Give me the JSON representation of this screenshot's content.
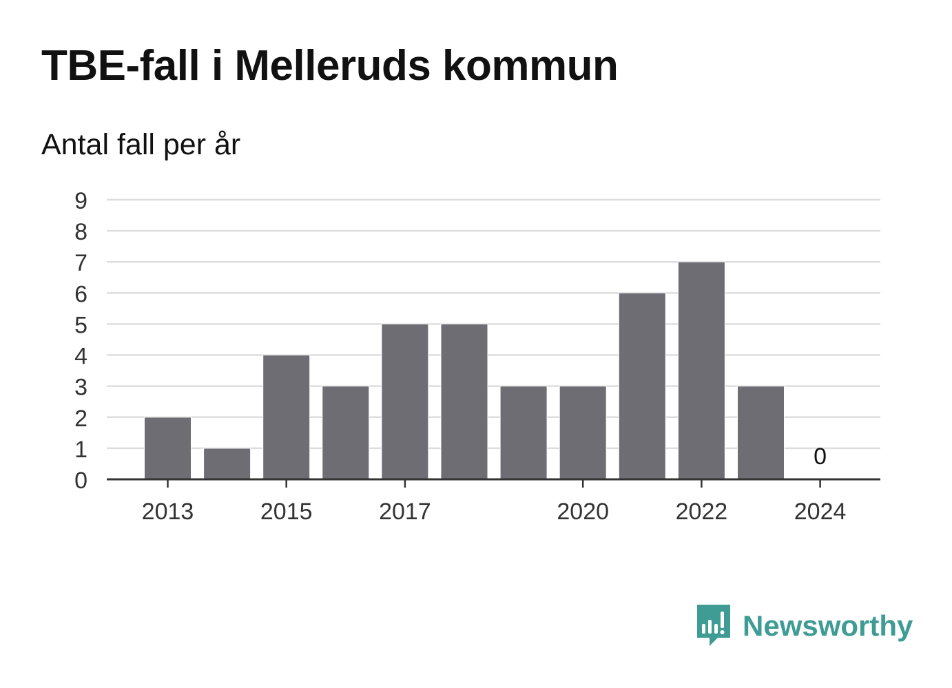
{
  "title": "TBE-fall i Melleruds kommun",
  "subtitle": "Antal fall per år",
  "brand": {
    "name": "Newsworthy",
    "logo_icon": "newsworthy-logo-icon",
    "color": "#3e9c94"
  },
  "colors": {
    "bar": "#6e6d73",
    "grid": "#dddddd",
    "axis": "#333333",
    "text": "#111111",
    "tick_text": "#333333"
  },
  "chart_data": {
    "type": "bar",
    "title": "TBE-fall i Melleruds kommun",
    "subtitle": "Antal fall per år",
    "xlabel": "",
    "ylabel": "",
    "categories": [
      "2013",
      "2014",
      "2015",
      "2016",
      "2017",
      "2018",
      "2019",
      "2020",
      "2021",
      "2022",
      "2023",
      "2024"
    ],
    "values": [
      2,
      1,
      4,
      3,
      5,
      5,
      3,
      3,
      6,
      7,
      3,
      0
    ],
    "x_tick_labels": [
      "2013",
      "2015",
      "2017",
      "2020",
      "2022",
      "2024"
    ],
    "y_ticks": [
      0,
      1,
      2,
      3,
      4,
      5,
      6,
      7,
      8,
      9
    ],
    "ylim": [
      0,
      9
    ],
    "data_labels": [
      {
        "category": "2024",
        "text": "0"
      }
    ],
    "grid": true,
    "legend": "none"
  }
}
